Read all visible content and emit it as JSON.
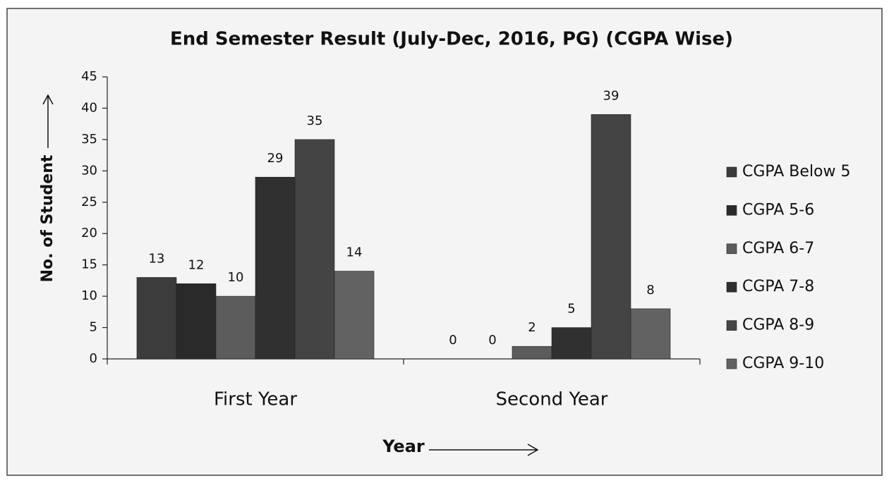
{
  "chart_data": {
    "type": "bar",
    "title": "End Semester Result (July-Dec, 2016, PG) (CGPA Wise)",
    "x_label": "Year",
    "y_label": "No. of Student",
    "categories": [
      "First Year",
      "Second Year"
    ],
    "series": [
      {
        "name": "CGPA Below 5",
        "color": "#3c3c3c",
        "values": [
          13,
          0
        ]
      },
      {
        "name": "CGPA 5-6",
        "color": "#2a2a2a",
        "values": [
          12,
          0
        ]
      },
      {
        "name": "CGPA 6-7",
        "color": "#5c5c5c",
        "values": [
          10,
          2
        ]
      },
      {
        "name": "CGPA 7-8",
        "color": "#303030",
        "values": [
          29,
          5
        ]
      },
      {
        "name": "CGPA 8-9",
        "color": "#444444",
        "values": [
          35,
          39
        ]
      },
      {
        "name": "CGPA 9-10",
        "color": "#626262",
        "values": [
          14,
          8
        ]
      }
    ],
    "ylim": [
      0,
      45
    ],
    "yticks": [
      0,
      5,
      10,
      15,
      20,
      25,
      30,
      35,
      40,
      45
    ],
    "legend": "right"
  }
}
